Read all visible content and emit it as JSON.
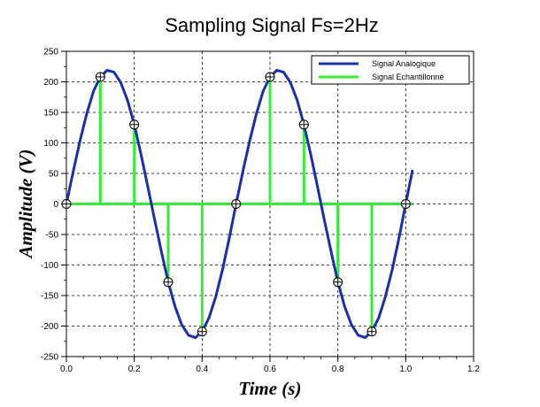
{
  "chart_data": {
    "type": "line",
    "title": "Sampling Signal Fs=2Hz",
    "xlabel": "Time (s)",
    "ylabel": "Amplitude (V)",
    "xlim": [
      0,
      1.2
    ],
    "ylim": [
      -250,
      250
    ],
    "xticks": [
      "0.0",
      "0.2",
      "0.4",
      "0.6",
      "0.8",
      "1.0",
      "1.2"
    ],
    "yticks": [
      "-250",
      "-200",
      "-150",
      "-100",
      "-50",
      "0",
      "50",
      "100",
      "150",
      "200",
      "250"
    ],
    "grid": true,
    "legend_position": "top-right",
    "series": [
      {
        "name": "Signal Analogique",
        "kind": "line",
        "color": "#1a2fb0",
        "x": [
          0,
          0.02,
          0.04,
          0.06,
          0.08,
          0.1,
          0.12,
          0.14,
          0.16,
          0.18,
          0.2,
          0.22,
          0.24,
          0.26,
          0.28,
          0.3,
          0.32,
          0.34,
          0.36,
          0.38,
          0.4,
          0.42,
          0.44,
          0.46,
          0.48,
          0.5,
          0.52,
          0.54,
          0.56,
          0.58,
          0.6,
          0.62,
          0.64,
          0.66,
          0.68,
          0.7,
          0.72,
          0.74,
          0.76,
          0.78,
          0.8,
          0.82,
          0.84,
          0.86,
          0.88,
          0.9,
          0.92,
          0.94,
          0.96,
          0.98,
          1.0,
          1.02
        ],
        "y": [
          0,
          53,
          103,
          148,
          185,
          208,
          219,
          216,
          199,
          170,
          130,
          81,
          28,
          -26,
          -78,
          -128,
          -168,
          -198,
          -215,
          -219,
          -209,
          -187,
          -152,
          -108,
          -56,
          0,
          53,
          103,
          148,
          185,
          208,
          219,
          216,
          199,
          170,
          130,
          81,
          28,
          -26,
          -78,
          -128,
          -168,
          -198,
          -215,
          -219,
          -209,
          -187,
          -152,
          -108,
          -56,
          0,
          56
        ]
      },
      {
        "name": "Signal Echantillonné",
        "kind": "stem",
        "color": "#33ee33",
        "x": [
          0,
          0.1,
          0.2,
          0.3,
          0.4,
          0.5,
          0.6,
          0.7,
          0.8,
          0.9,
          1.0
        ],
        "y": [
          0,
          208,
          130,
          -128,
          -209,
          0,
          208,
          130,
          -128,
          -209,
          0
        ],
        "zero_line_x": [
          0,
          1.02
        ]
      }
    ]
  }
}
